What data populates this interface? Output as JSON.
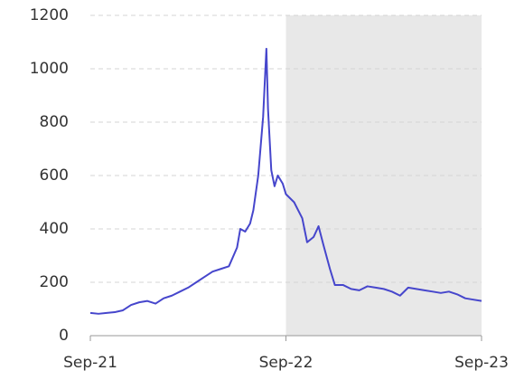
{
  "chart_data": {
    "type": "line",
    "x": [
      0,
      0.5,
      1,
      1.5,
      2,
      2.5,
      3,
      3.5,
      4,
      4.5,
      5,
      5.5,
      6,
      6.5,
      7,
      7.5,
      8,
      8.5,
      9,
      9.2,
      9.5,
      9.8,
      10,
      10.3,
      10.6,
      10.8,
      10.9,
      11.1,
      11.3,
      11.5,
      11.8,
      12,
      12.5,
      13,
      13.3,
      13.7,
      14,
      14.3,
      14.7,
      15,
      15.5,
      16,
      16.5,
      17,
      17.5,
      18,
      18.5,
      19,
      19.5,
      20,
      20.5,
      21,
      21.5,
      22,
      22.5,
      23,
      23.5,
      24
    ],
    "series": [
      {
        "color": "#4646cc",
        "values": [
          85,
          82,
          85,
          88,
          95,
          115,
          125,
          130,
          120,
          140,
          150,
          165,
          180,
          200,
          220,
          240,
          250,
          260,
          330,
          400,
          390,
          420,
          470,
          600,
          820,
          1075,
          850,
          620,
          560,
          600,
          570,
          530,
          500,
          440,
          350,
          370,
          410,
          340,
          250,
          190,
          190,
          175,
          170,
          185,
          180,
          175,
          165,
          150,
          180,
          175,
          170,
          165,
          160,
          165,
          155,
          140,
          135,
          130
        ]
      }
    ],
    "xlim": [
      0,
      24
    ],
    "xticks": [
      {
        "value": 0,
        "label": "Sep-21"
      },
      {
        "value": 12,
        "label": "Sep-22"
      },
      {
        "value": 24,
        "label": "Sep-23"
      }
    ],
    "ylim": [
      0,
      1200
    ],
    "yticks": [
      0,
      200,
      400,
      600,
      800,
      1000,
      1200
    ],
    "grid": true,
    "shaded_region": [
      12,
      24
    ]
  }
}
